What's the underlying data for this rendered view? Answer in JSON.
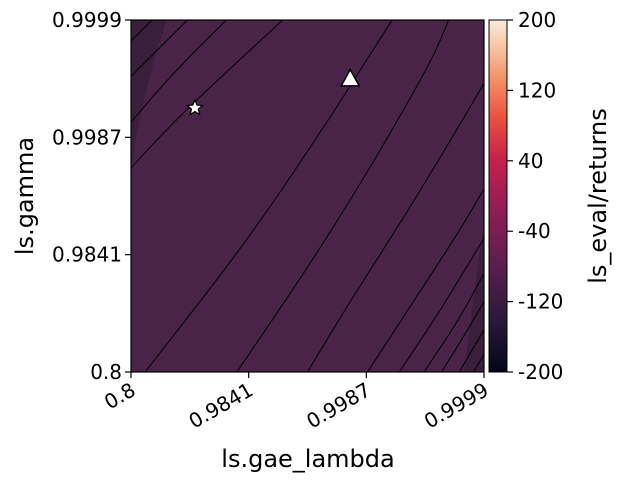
{
  "chart_data": {
    "type": "contour",
    "xlabel": "ls.gae_lambda",
    "ylabel": "ls.gamma",
    "x_ticks": [
      "0.8",
      "0.9841",
      "0.9987",
      "0.9999"
    ],
    "y_ticks": [
      "0.8",
      "0.9841",
      "0.9987",
      "0.9999"
    ],
    "colorbar": {
      "label": "ls_eval/returns",
      "ticks": [
        "200",
        "120",
        "40",
        "-40",
        "-120",
        "-200"
      ],
      "range": [
        -200,
        200
      ],
      "colormap": "rocket"
    },
    "field_color": "#4a2348",
    "field_color_dark": "#3a1f3d",
    "markers": [
      {
        "shape": "star",
        "x": 0.9,
        "y": 0.999
      },
      {
        "shape": "triangle",
        "x": 0.9967,
        "y": 0.9993
      }
    ],
    "contour_levels_visible": 14
  }
}
